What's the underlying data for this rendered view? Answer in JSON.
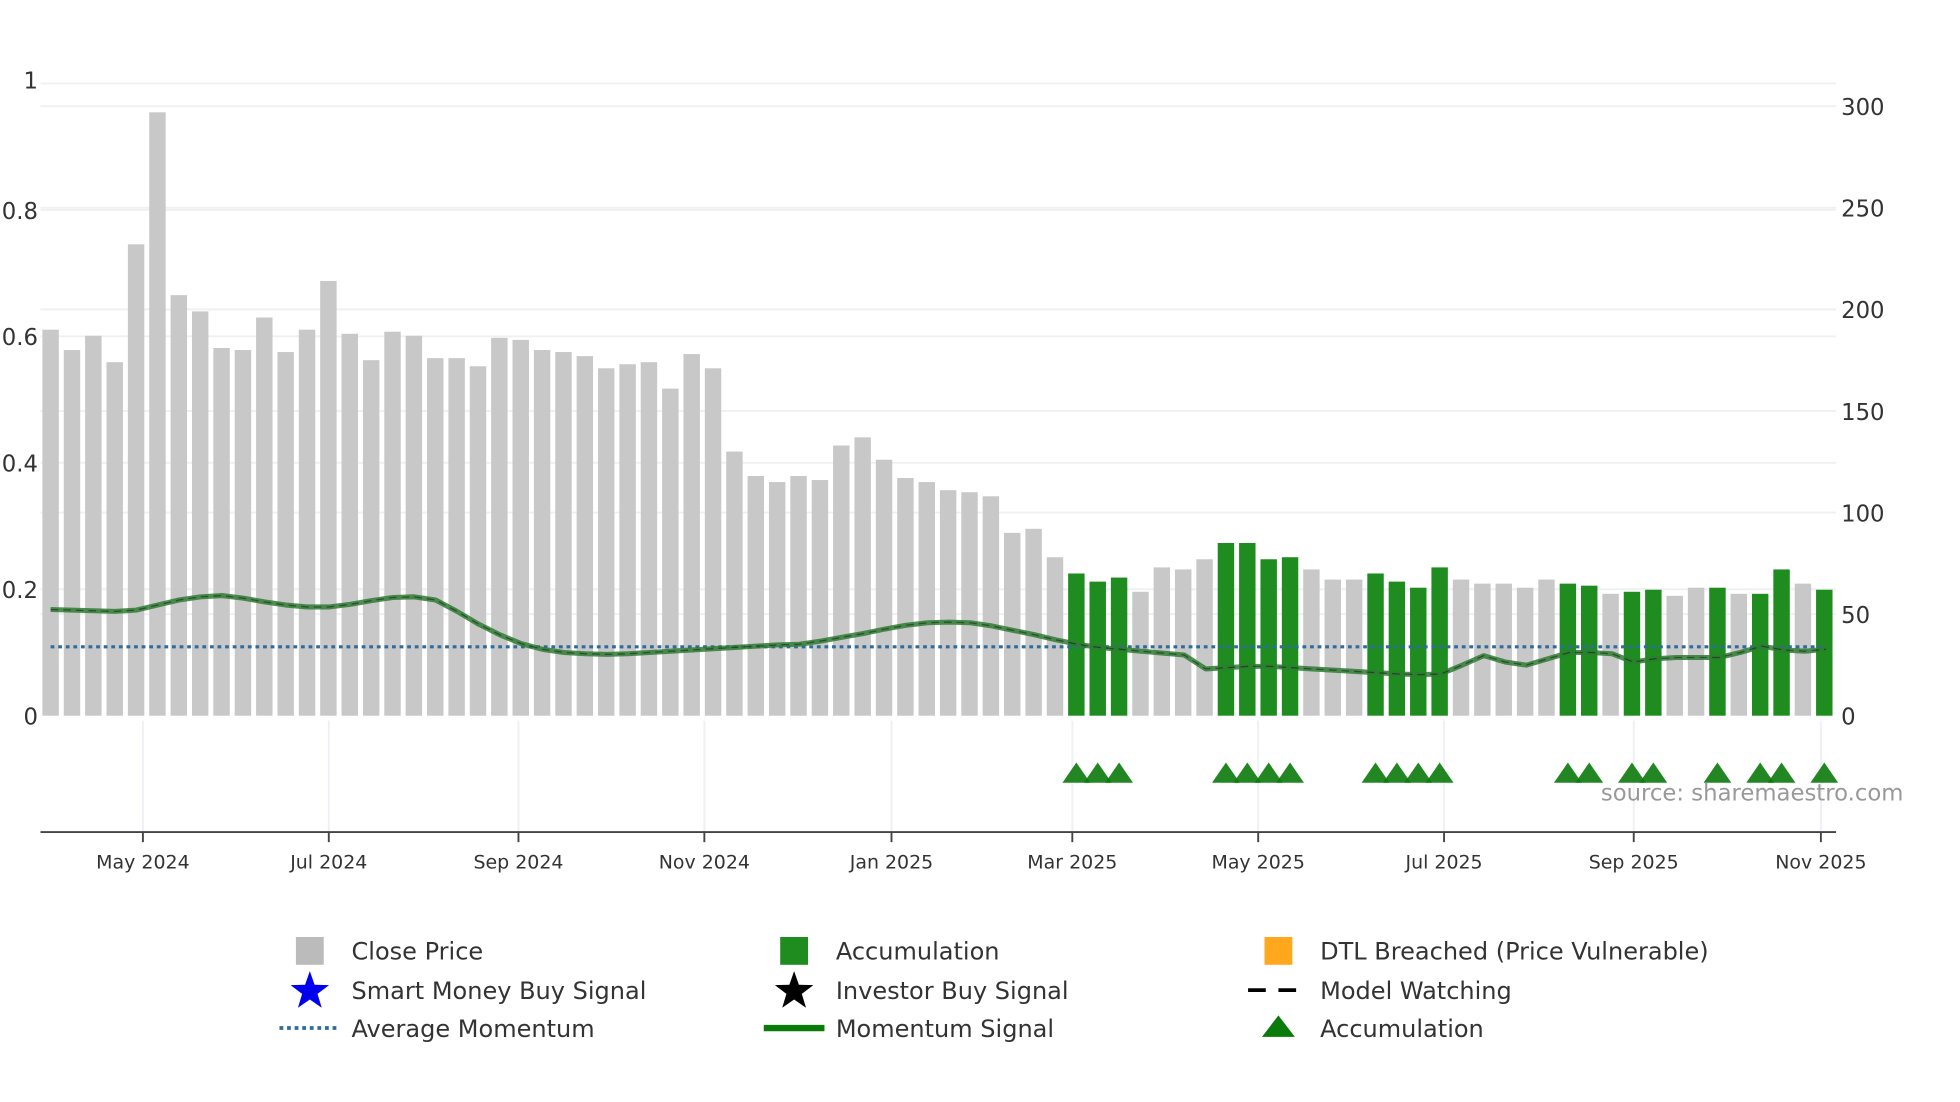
{
  "chart_data": {
    "type": "bar",
    "title": "",
    "xlabel": "",
    "left_axis": {
      "ylim": [
        0,
        1
      ],
      "ticks": [
        "0",
        "0.2",
        "0.4",
        "0.6",
        "0.8",
        "1"
      ]
    },
    "right_axis": {
      "ylim": [
        0,
        300
      ],
      "ticks": [
        "0",
        "50",
        "100",
        "150",
        "200",
        "250",
        "300"
      ]
    },
    "x_ticks": [
      "May 2024",
      "Jul 2024",
      "Sep 2024",
      "Nov 2024",
      "Jan 2025",
      "Mar 2025",
      "May 2025",
      "Jul 2025",
      "Sep 2025",
      "Nov 2025"
    ],
    "close_price": [
      190,
      180,
      187,
      174,
      232,
      297,
      207,
      199,
      181,
      180,
      196,
      179,
      190,
      214,
      188,
      175,
      189,
      187,
      176,
      176,
      172,
      186,
      185,
      180,
      179,
      177,
      171,
      173,
      174,
      161,
      178,
      171,
      130,
      118,
      115,
      118,
      116,
      133,
      137,
      126,
      117,
      115,
      111,
      110,
      108,
      90,
      92,
      78,
      70,
      66,
      68,
      61,
      73,
      72,
      77,
      85,
      85,
      77,
      78,
      72,
      67,
      67,
      70,
      66,
      63,
      73,
      67,
      65,
      65,
      63,
      67,
      65,
      64,
      60,
      61,
      62,
      59,
      63,
      63,
      60,
      60,
      72,
      65,
      62
    ],
    "accumulation_weeks": [
      48,
      49,
      50,
      55,
      56,
      57,
      58,
      62,
      63,
      64,
      65,
      71,
      72,
      74,
      75,
      78,
      80,
      81,
      83
    ],
    "momentum_signal": [
      0.168,
      0.167,
      0.166,
      0.165,
      0.167,
      0.175,
      0.183,
      0.188,
      0.19,
      0.186,
      0.18,
      0.175,
      0.172,
      0.172,
      0.176,
      0.182,
      0.187,
      0.188,
      0.183,
      0.165,
      0.145,
      0.128,
      0.114,
      0.105,
      0.1,
      0.098,
      0.097,
      0.098,
      0.1,
      0.102,
      0.104,
      0.106,
      0.108,
      0.11,
      0.112,
      0.113,
      0.118,
      0.124,
      0.13,
      0.137,
      0.143,
      0.147,
      0.148,
      0.147,
      0.142,
      0.135,
      0.128,
      0.12,
      0.113,
      0.108,
      0.105,
      0.102,
      0.099,
      0.096,
      0.094,
      0.092,
      0.09,
      0.088,
      0.086,
      0.083,
      0.081,
      0.079,
      0.078,
      0.077,
      0.077,
      0.077,
      0.077,
      0.076,
      0.076,
      0.075,
      0.074,
      0.073,
      0.072,
      0.072,
      0.073,
      0.074,
      0.075,
      0.075,
      0.074,
      0.073,
      0.072,
      0.071,
      0.071,
      0.072
    ],
    "momentum_tail": [
      0.074,
      0.076,
      0.078,
      0.078,
      0.076,
      0.074,
      0.072,
      0.07,
      0.068,
      0.066,
      0.065,
      0.066,
      0.08,
      0.095,
      0.085,
      0.08,
      0.09,
      0.1,
      0.1,
      0.098,
      0.085,
      0.09,
      0.092,
      0.092,
      0.092,
      0.1,
      0.11,
      0.104,
      0.102,
      0.105
    ],
    "average_momentum": 0.109,
    "legend": [
      {
        "label": "Close Price",
        "icon": "gray-square",
        "color": "#bbbbbb"
      },
      {
        "label": "Accumulation",
        "icon": "green-square",
        "color": "#1e8c1e"
      },
      {
        "label": "DTL Breached (Price Vulnerable)",
        "icon": "orange-square",
        "color": "#ffa81e"
      },
      {
        "label": "Smart Money Buy Signal",
        "icon": "blue-star",
        "color": "#0000ee"
      },
      {
        "label": "Investor Buy Signal",
        "icon": "black-star",
        "color": "#000000"
      },
      {
        "label": "Model Watching",
        "icon": "black-dash",
        "color": "#000000"
      },
      {
        "label": "Average Momentum",
        "icon": "blue-dotted-line",
        "color": "#2e6b9e"
      },
      {
        "label": "Momentum Signal",
        "icon": "green-line",
        "color": "#0a7a0a"
      },
      {
        "label": "Accumulation",
        "icon": "green-triangle",
        "color": "#0a7a0a"
      }
    ],
    "legend_position": "bottom"
  },
  "source": "source: sharemaestro.com",
  "colors": {
    "price": "#c8c8c8",
    "accum": "#1e8c1e",
    "momentum": "#2e7d32",
    "avg": "#2e6b9e",
    "triangle": "#0a7a0a"
  }
}
